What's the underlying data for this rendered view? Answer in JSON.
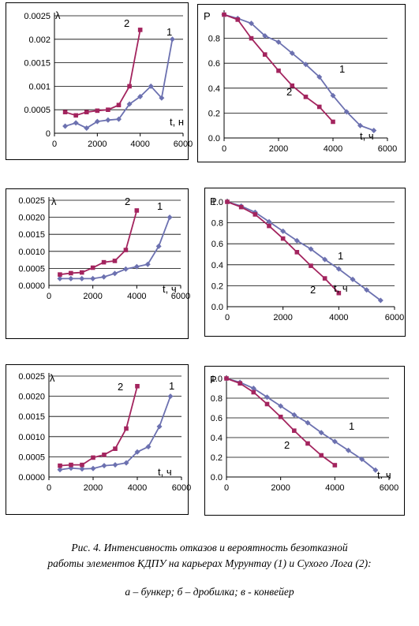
{
  "caption": {
    "line1": "Рис. 4. Интенсивность отказов и вероятность безотказной",
    "line2": "работы элементов КДПУ на карьерах Мурунтау (1)  и Сухого Лога (2):",
    "line3": "а – бункер; б – дробилка; в - конвейер"
  },
  "colors": {
    "series1": "#6c71b0",
    "series2": "#a3245e"
  },
  "chart_data": [
    {
      "type": "line",
      "ylabel": "λ",
      "xlabel": "t, н",
      "xlim": [
        0,
        6000
      ],
      "ylim": [
        0,
        0.0025
      ],
      "xticks": [
        "0",
        "2000",
        "4000",
        "6000"
      ],
      "yticks": [
        "0",
        "0.0005",
        "0.001",
        "0.0015",
        "0.002",
        "0.0025"
      ],
      "grid": "horizontal",
      "series": [
        {
          "name": "1",
          "x": [
            500,
            1000,
            1500,
            2000,
            2500,
            3000,
            3500,
            4000,
            4500,
            5000,
            5500
          ],
          "y": [
            0.00015,
            0.00022,
            0.00011,
            0.00025,
            0.00028,
            0.0003,
            0.00062,
            0.00078,
            0.001,
            0.00075,
            0.002
          ]
        },
        {
          "name": "2",
          "x": [
            500,
            1000,
            1500,
            2000,
            2500,
            3000,
            3500,
            4000
          ],
          "y": [
            0.00045,
            0.00038,
            0.00045,
            0.00048,
            0.0005,
            0.0006,
            0.001,
            0.0022
          ]
        }
      ]
    },
    {
      "type": "line",
      "ylabel": "P",
      "xlabel": "t, ч",
      "xlim": [
        0,
        6000
      ],
      "ylim": [
        0,
        1.0
      ],
      "xticks": [
        "0",
        "2000",
        "4000",
        "6000"
      ],
      "yticks": [
        "0.0",
        "0.2",
        "0.4",
        "0.6",
        "0.8"
      ],
      "grid": "horizontal",
      "series": [
        {
          "name": "1",
          "x": [
            0,
            500,
            1000,
            1500,
            2000,
            2500,
            3000,
            3500,
            4000,
            4500,
            5000,
            5500
          ],
          "y": [
            0.99,
            0.96,
            0.92,
            0.82,
            0.77,
            0.68,
            0.59,
            0.49,
            0.34,
            0.21,
            0.1,
            0.06
          ]
        },
        {
          "name": "2",
          "x": [
            0,
            500,
            1000,
            1500,
            2000,
            2500,
            3000,
            3500,
            4000
          ],
          "y": [
            0.99,
            0.95,
            0.8,
            0.67,
            0.54,
            0.42,
            0.33,
            0.25,
            0.13
          ]
        }
      ]
    },
    {
      "type": "line",
      "ylabel": "λ",
      "xlabel": "t, ч",
      "xlim": [
        0,
        6000
      ],
      "ylim": [
        0,
        0.0025
      ],
      "xticks": [
        "0",
        "2000",
        "4000",
        "6000"
      ],
      "yticks": [
        "0.0000",
        "0.0005",
        "0.0010",
        "0.0015",
        "0.0020",
        "0.0025"
      ],
      "grid": "horizontal",
      "series": [
        {
          "name": "1",
          "x": [
            500,
            1000,
            1500,
            2000,
            2500,
            3000,
            3500,
            4000,
            4500,
            5000,
            5500
          ],
          "y": [
            0.0002,
            0.0002,
            0.0002,
            0.0002,
            0.00025,
            0.00035,
            0.00048,
            0.00055,
            0.00062,
            0.00115,
            0.002
          ]
        },
        {
          "name": "2",
          "x": [
            500,
            1000,
            1500,
            2000,
            2500,
            3000,
            3500,
            4000
          ],
          "y": [
            0.00032,
            0.00036,
            0.00038,
            0.00052,
            0.00068,
            0.00072,
            0.00104,
            0.0022
          ]
        }
      ]
    },
    {
      "type": "line",
      "ylabel": "P",
      "xlabel": "t, ч",
      "xlim": [
        0,
        6000
      ],
      "ylim": [
        0,
        1.0
      ],
      "xticks": [
        "0",
        "2000",
        "4000",
        "6000"
      ],
      "yticks": [
        "0.0",
        "0.2",
        "0.4",
        "0.6",
        "0.8",
        "1.0"
      ],
      "grid": "horizontal",
      "series": [
        {
          "name": "1",
          "x": [
            0,
            500,
            1000,
            1500,
            2000,
            2500,
            3000,
            3500,
            4000,
            4500,
            5000,
            5500
          ],
          "y": [
            1.0,
            0.96,
            0.9,
            0.81,
            0.72,
            0.63,
            0.55,
            0.45,
            0.36,
            0.26,
            0.16,
            0.06
          ]
        },
        {
          "name": "2",
          "x": [
            0,
            500,
            1000,
            1500,
            2000,
            2500,
            3000,
            3500,
            4000
          ],
          "y": [
            1.0,
            0.95,
            0.88,
            0.77,
            0.65,
            0.52,
            0.39,
            0.27,
            0.13
          ]
        }
      ]
    },
    {
      "type": "line",
      "ylabel": "λ",
      "xlabel": "t, ч",
      "xlim": [
        0,
        6000
      ],
      "ylim": [
        0,
        0.0025
      ],
      "xticks": [
        "0",
        "2000",
        "4000",
        "6000"
      ],
      "yticks": [
        "0.0000",
        "0.0005",
        "0.0010",
        "0.0015",
        "0.0020",
        "0.0025"
      ],
      "grid": "horizontal",
      "series": [
        {
          "name": "1",
          "x": [
            500,
            1000,
            1500,
            2000,
            2500,
            3000,
            3500,
            4000,
            4500,
            5000,
            5500
          ],
          "y": [
            0.00018,
            0.00022,
            0.0002,
            0.00021,
            0.00028,
            0.0003,
            0.00035,
            0.00062,
            0.00075,
            0.00125,
            0.002
          ]
        },
        {
          "name": "2",
          "x": [
            500,
            1000,
            1500,
            2000,
            2500,
            3000,
            3500,
            4000
          ],
          "y": [
            0.00028,
            0.0003,
            0.0003,
            0.00048,
            0.00055,
            0.0007,
            0.0012,
            0.00225
          ]
        }
      ]
    },
    {
      "type": "line",
      "ylabel": "P",
      "xlabel": "t. ч",
      "xlim": [
        0,
        6000
      ],
      "ylim": [
        0,
        1.0
      ],
      "xticks": [
        "0",
        "2000",
        "4000",
        "6000"
      ],
      "yticks": [
        "0.0",
        "0.2",
        "0.4",
        "0.6",
        "0.8",
        "1.0"
      ],
      "grid": "horizontal",
      "series": [
        {
          "name": "1",
          "x": [
            0,
            500,
            1000,
            1500,
            2000,
            2500,
            3000,
            3500,
            4000,
            4500,
            5000,
            5500
          ],
          "y": [
            1.0,
            0.96,
            0.9,
            0.81,
            0.72,
            0.63,
            0.55,
            0.45,
            0.36,
            0.27,
            0.18,
            0.07
          ]
        },
        {
          "name": "2",
          "x": [
            0,
            500,
            1000,
            1500,
            2000,
            2500,
            3000,
            3500,
            4000
          ],
          "y": [
            1.0,
            0.95,
            0.86,
            0.74,
            0.61,
            0.47,
            0.34,
            0.22,
            0.12
          ]
        }
      ]
    }
  ]
}
